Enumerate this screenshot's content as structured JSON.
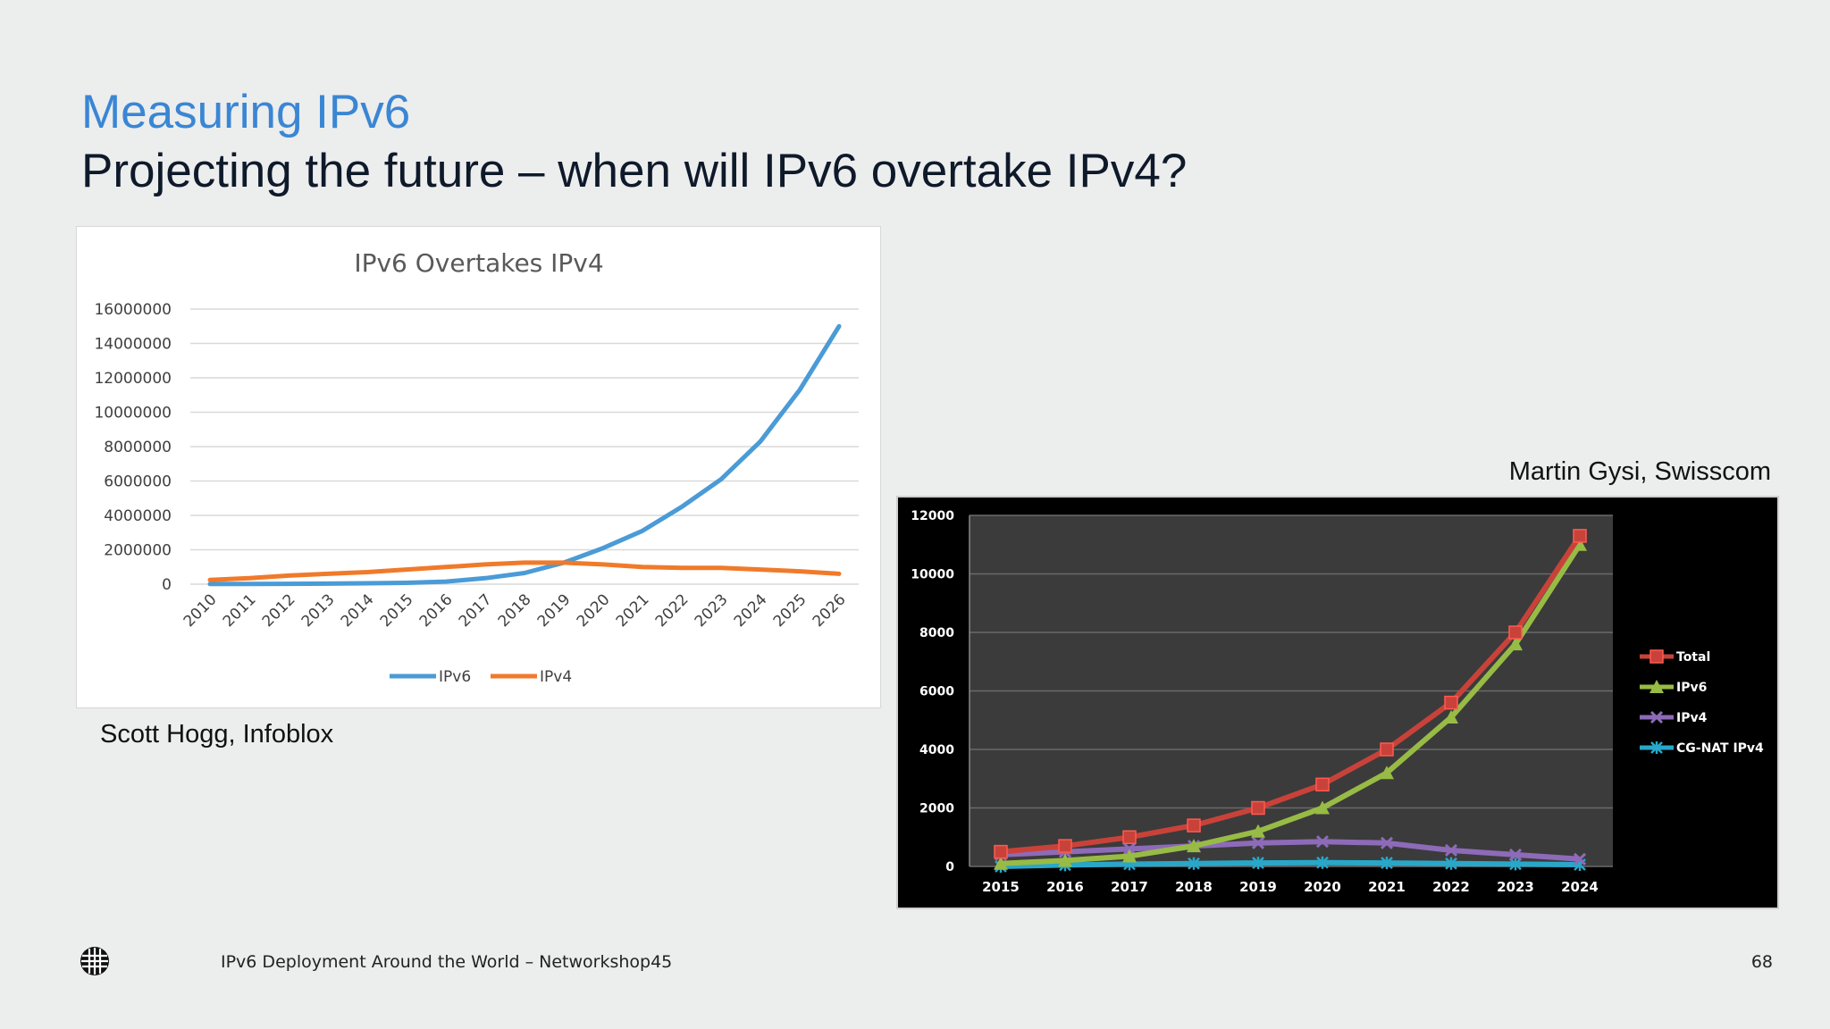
{
  "slide": {
    "title": "Measuring IPv6",
    "subtitle": "Projecting the future – when will IPv6 overtake IPv4?",
    "credit_left": "Scott Hogg, Infoblox",
    "credit_right": "Martin Gysi, Swisscom",
    "footer": "IPv6 Deployment Around the World – Networkshop45",
    "page_number": "68",
    "logo_icon": "globe-logo-icon"
  },
  "chart_data": [
    {
      "type": "line",
      "title": "IPv6 Overtakes IPv4",
      "background": "white",
      "xlabel": "",
      "ylabel": "",
      "x": [
        "2010",
        "2011",
        "2012",
        "2013",
        "2014",
        "2015",
        "2016",
        "2017",
        "2018",
        "2019",
        "2020",
        "2021",
        "2022",
        "2023",
        "2024",
        "2025",
        "2026"
      ],
      "ylim": [
        0,
        16000000
      ],
      "yticks": [
        "0",
        "2000000",
        "4000000",
        "6000000",
        "8000000",
        "10000000",
        "12000000",
        "14000000",
        "16000000"
      ],
      "grid": true,
      "legend_position": "bottom",
      "series": [
        {
          "name": "IPv6",
          "color": "#4a9bd6",
          "values": [
            10000,
            15000,
            20000,
            30000,
            50000,
            80000,
            150000,
            350000,
            650000,
            1250000,
            2100000,
            3100000,
            4500000,
            6100000,
            8300000,
            11300000,
            15000000
          ]
        },
        {
          "name": "IPv4",
          "color": "#f07a2a",
          "values": [
            250000,
            350000,
            500000,
            600000,
            700000,
            850000,
            1000000,
            1150000,
            1250000,
            1250000,
            1150000,
            1000000,
            950000,
            950000,
            850000,
            750000,
            600000
          ]
        }
      ]
    },
    {
      "type": "line",
      "title": "",
      "background": "black",
      "xlabel": "",
      "ylabel": "",
      "x": [
        "2015",
        "2016",
        "2017",
        "2018",
        "2019",
        "2020",
        "2021",
        "2022",
        "2023",
        "2024"
      ],
      "ylim": [
        0,
        12000
      ],
      "yticks": [
        "0",
        "2000",
        "4000",
        "6000",
        "8000",
        "10000",
        "12000"
      ],
      "grid": true,
      "legend_position": "right",
      "series": [
        {
          "name": "Total",
          "color": "#c8423a",
          "marker": "square",
          "values": [
            500,
            700,
            1000,
            1400,
            2000,
            2800,
            4000,
            5600,
            8000,
            11300
          ]
        },
        {
          "name": "IPv6",
          "color": "#98bb45",
          "marker": "triangle",
          "values": [
            100,
            200,
            350,
            700,
            1200,
            2000,
            3200,
            5100,
            7600,
            11000
          ]
        },
        {
          "name": "IPv4",
          "color": "#8d6bb8",
          "marker": "x",
          "values": [
            400,
            500,
            600,
            700,
            800,
            850,
            800,
            550,
            400,
            250
          ]
        },
        {
          "name": "CG-NAT IPv4",
          "color": "#29a7c9",
          "marker": "star",
          "values": [
            0,
            50,
            80,
            100,
            120,
            130,
            120,
            100,
            80,
            60
          ]
        }
      ]
    }
  ]
}
